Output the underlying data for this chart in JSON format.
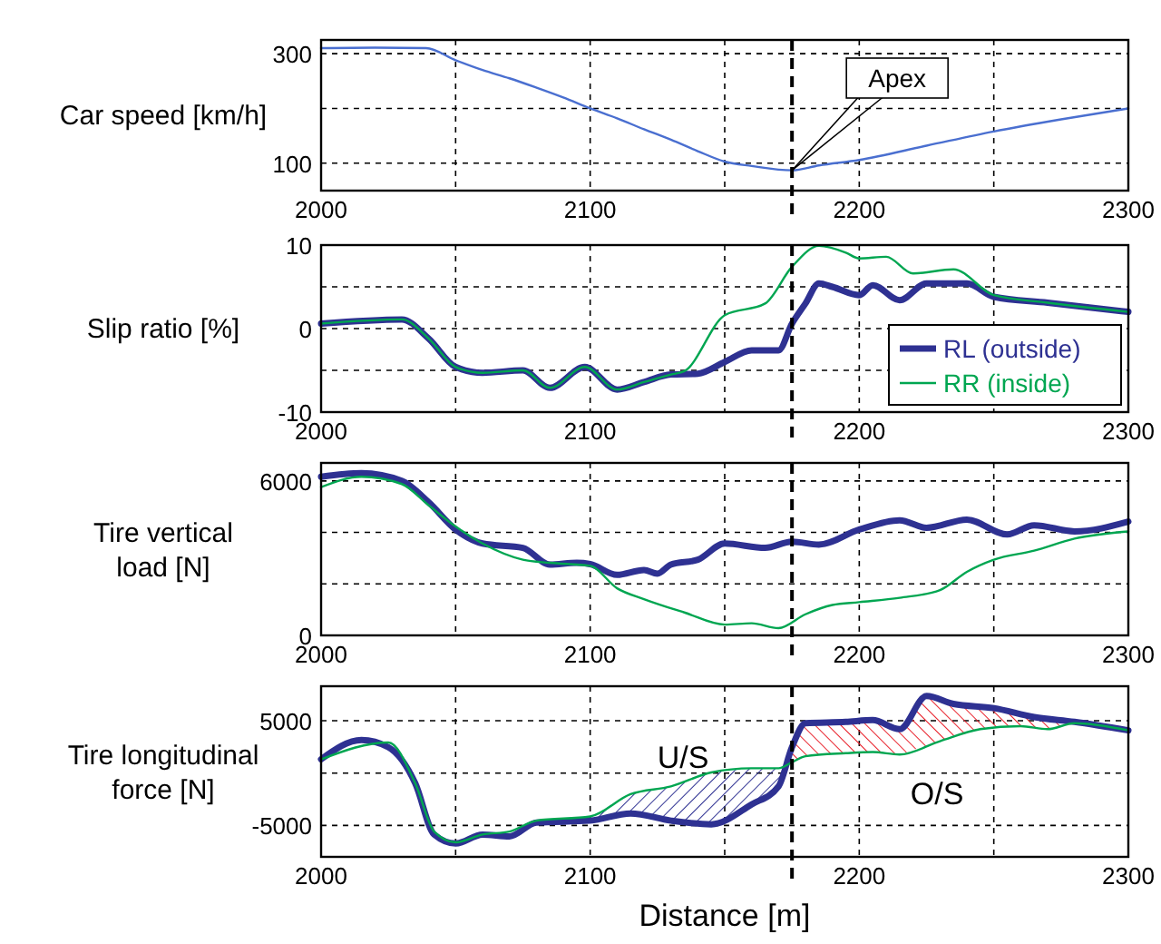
{
  "chart_data": [
    {
      "type": "line",
      "ylabel": "Car speed [km/h]",
      "xlim": [
        2000,
        2300
      ],
      "xticks": [
        2000,
        {
          "value": 2050,
          "label": null
        },
        2100,
        {
          "value": 2150,
          "label": null
        },
        2200,
        {
          "value": 2250,
          "label": null
        },
        2300
      ],
      "ylim": [
        50,
        325
      ],
      "yticks": [
        100,
        {
          "value": 200,
          "label": null
        },
        300
      ],
      "grid": true,
      "legend": false,
      "series": [
        {
          "color": "#4a6fd0",
          "x": [
            2000,
            2020,
            2039,
            2050,
            2060,
            2070,
            2080,
            2090,
            2100,
            2110,
            2120,
            2130,
            2140,
            2150,
            2160,
            2175,
            2185,
            2200,
            2225,
            2250,
            2275,
            2300
          ],
          "values": [
            310,
            311,
            310,
            288,
            270,
            255,
            238,
            220,
            200,
            182,
            162,
            143,
            122,
            103,
            95,
            87,
            96,
            106,
            132,
            158,
            180,
            200
          ]
        }
      ],
      "ref_lines": [
        {
          "axis": "x",
          "value": 2175,
          "label": "Apex",
          "color": "#000000",
          "line_style": "dashed"
        }
      ]
    },
    {
      "type": "line",
      "ylabel": "Slip ratio [%]",
      "xlim": [
        2000,
        2300
      ],
      "xticks": [
        2000,
        {
          "value": 2050,
          "label": null
        },
        2100,
        {
          "value": 2150,
          "label": null
        },
        2200,
        {
          "value": 2250,
          "label": null
        },
        2300
      ],
      "ylim": [
        -10,
        10
      ],
      "yticks": [
        -10,
        {
          "value": -5,
          "label": null
        },
        0,
        {
          "value": 5,
          "label": null
        },
        10
      ],
      "grid": true,
      "legend": "bottom right",
      "series": [
        {
          "name": "RL (outside)",
          "color": "#2e3192",
          "x": [
            2000,
            2030,
            2040,
            2050,
            2060,
            2075,
            2085,
            2098,
            2110,
            2120,
            2130,
            2140,
            2150,
            2160,
            2170,
            2175,
            2180,
            2185,
            2190,
            2200,
            2205,
            2215,
            2225,
            2240,
            2250,
            2270,
            2300
          ],
          "values": [
            0.6,
            1.1,
            -1.2,
            -4.6,
            -5.3,
            -5,
            -7.1,
            -4.6,
            -7.3,
            -6.4,
            -5.5,
            -5.4,
            -4,
            -2.6,
            -2.6,
            0.6,
            3,
            5.4,
            5,
            4,
            5.2,
            3.4,
            5.4,
            5.4,
            3.8,
            3.1,
            2
          ]
        },
        {
          "name": "RR (inside)",
          "color": "#00a651",
          "x": [
            2000,
            2030,
            2040,
            2050,
            2060,
            2075,
            2085,
            2098,
            2110,
            2120,
            2130,
            2135,
            2150,
            2165,
            2175,
            2185,
            2195,
            2200,
            2210,
            2220,
            2235,
            2250,
            2270,
            2300
          ],
          "values": [
            0.6,
            1.1,
            -1.2,
            -4.6,
            -5.3,
            -5,
            -7.1,
            -4.6,
            -7.3,
            -6.4,
            -5.5,
            -5.1,
            1.6,
            3,
            7.4,
            9.9,
            9.1,
            8.4,
            8.6,
            6.6,
            7.1,
            4,
            3.1,
            2
          ]
        }
      ],
      "ref_lines": [
        {
          "axis": "x",
          "value": 2175,
          "color": "#000000",
          "line_style": "dashed"
        }
      ]
    },
    {
      "type": "line",
      "ylabel": "Tire vertical\nload [N]",
      "xlim": [
        2000,
        2300
      ],
      "xticks": [
        2000,
        {
          "value": 2050,
          "label": null
        },
        2100,
        {
          "value": 2150,
          "label": null
        },
        2200,
        {
          "value": 2250,
          "label": null
        },
        2300
      ],
      "ylim": [
        0,
        6700
      ],
      "yticks": [
        0,
        {
          "value": 2000,
          "label": null
        },
        {
          "value": 4000,
          "label": null
        },
        6000
      ],
      "grid": true,
      "legend": false,
      "series": [
        {
          "color": "#2e3192",
          "x": [
            2000,
            2015,
            2030,
            2040,
            2050,
            2060,
            2075,
            2085,
            2095,
            2100,
            2110,
            2120,
            2125,
            2130,
            2140,
            2150,
            2165,
            2175,
            2185,
            2200,
            2215,
            2225,
            2240,
            2255,
            2265,
            2280,
            2300
          ],
          "values": [
            6160,
            6300,
            6000,
            5170,
            4110,
            3570,
            3400,
            2750,
            2820,
            2770,
            2350,
            2540,
            2400,
            2750,
            2940,
            3570,
            3400,
            3640,
            3530,
            4110,
            4470,
            4180,
            4500,
            3920,
            4280,
            4040,
            4420
          ]
        },
        {
          "color": "#00a651",
          "x": [
            2000,
            2015,
            2030,
            2040,
            2050,
            2060,
            2075,
            2085,
            2100,
            2110,
            2120,
            2135,
            2150,
            2160,
            2170,
            2180,
            2190,
            2200,
            2215,
            2230,
            2240,
            2250,
            2265,
            2280,
            2300
          ],
          "values": [
            5760,
            6160,
            5880,
            5050,
            4230,
            3570,
            2940,
            2820,
            2700,
            1830,
            1410,
            890,
            420,
            470,
            280,
            820,
            1180,
            1290,
            1460,
            1760,
            2470,
            2940,
            3290,
            3760,
            4040
          ]
        }
      ],
      "ref_lines": [
        {
          "axis": "x",
          "value": 2175,
          "color": "#000000",
          "line_style": "dashed"
        }
      ]
    },
    {
      "type": "line",
      "ylabel": "Tire longitudinal\nforce [N]",
      "xlabel": "Distance [m]",
      "xlim": [
        2000,
        2300
      ],
      "xticks": [
        2000,
        {
          "value": 2050,
          "label": null
        },
        2100,
        {
          "value": 2150,
          "label": null
        },
        2200,
        {
          "value": 2250,
          "label": null
        },
        2300
      ],
      "ylim": [
        -8000,
        8300
      ],
      "yticks": [
        -5000,
        {
          "value": 0,
          "label": null
        },
        5000
      ],
      "grid": true,
      "legend": false,
      "series": [
        {
          "color": "#2e3192",
          "x": [
            2000,
            2015,
            2025,
            2035,
            2042,
            2050,
            2060,
            2070,
            2080,
            2100,
            2115,
            2130,
            2145,
            2160,
            2170,
            2175,
            2180,
            2195,
            2205,
            2215,
            2225,
            2235,
            2250,
            2265,
            2280,
            2300
          ],
          "values": [
            1320,
            3160,
            2470,
            -980,
            -5870,
            -6730,
            -5870,
            -6040,
            -4720,
            -4540,
            -3850,
            -4540,
            -4890,
            -2990,
            -1270,
            2470,
            4770,
            4890,
            5060,
            4200,
            7360,
            6610,
            6210,
            5350,
            4890,
            4080
          ]
        },
        {
          "color": "#00a651",
          "x": [
            2000,
            2025,
            2035,
            2042,
            2050,
            2060,
            2070,
            2080,
            2100,
            2115,
            2130,
            2145,
            2160,
            2170,
            2175,
            2180,
            2195,
            2205,
            2215,
            2230,
            2245,
            2260,
            2270,
            2280,
            2300
          ],
          "values": [
            1320,
            2930,
            -980,
            -5580,
            -6610,
            -5870,
            -5580,
            -4540,
            -4140,
            -2010,
            -1270,
            60,
            460,
            460,
            1040,
            1610,
            1900,
            2010,
            1780,
            3050,
            4200,
            4490,
            4200,
            4770,
            4080
          ]
        }
      ],
      "ref_lines": [
        {
          "axis": "x",
          "value": 2175,
          "color": "#000000",
          "line_style": "dashed"
        }
      ],
      "annotations": [
        "U/S",
        "O/S"
      ]
    }
  ]
}
